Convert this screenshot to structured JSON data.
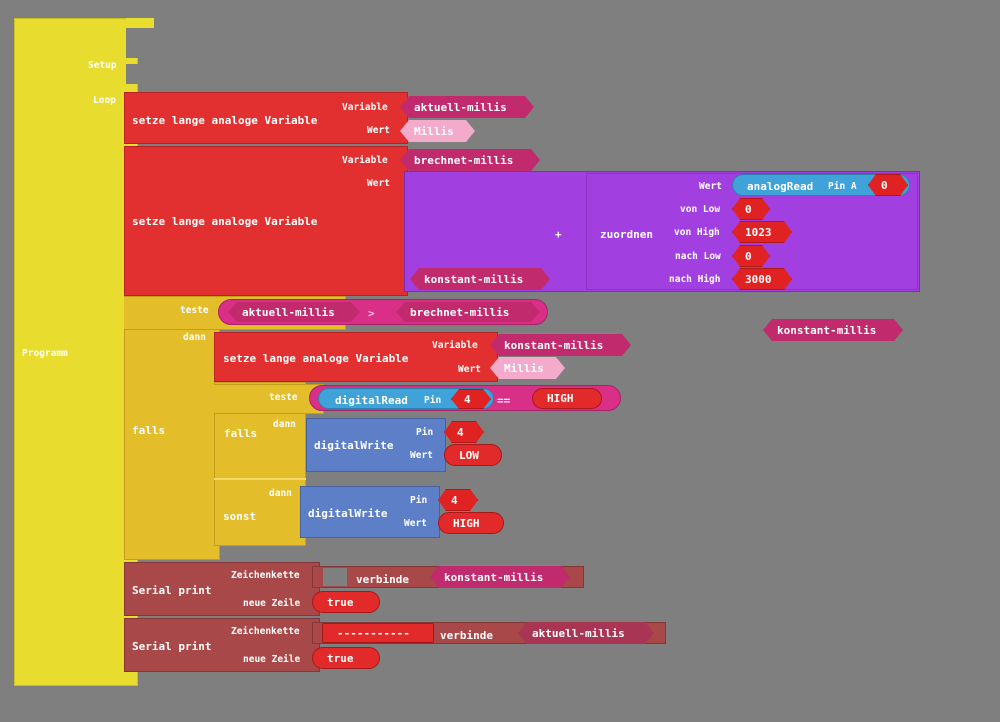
{
  "program": {
    "label": "Programm",
    "setup_label": "Setup",
    "loop_label": "Loop"
  },
  "set1": {
    "label": "setze lange analoge Variable",
    "variable_label": "Variable",
    "value_label": "Wert",
    "variable": "aktuell-millis",
    "value": "Millis"
  },
  "set2": {
    "label": "setze lange analoge Variable",
    "variable_label": "Variable",
    "value_label": "Wert",
    "variable": "brechnet-millis",
    "operator": "+",
    "left_operand": "konstant-millis",
    "map": {
      "label": "zuordnen",
      "value_label": "Wert",
      "analog_read_label": "analogRead",
      "pin_label": "Pin A",
      "pin_value": "0",
      "from_low_label": "von Low",
      "from_low": "0",
      "from_high_label": "von High",
      "from_high": "1023",
      "to_low_label": "nach Low",
      "to_low": "0",
      "to_high_label": "nach High",
      "to_high": "3000"
    }
  },
  "loose_var": "konstant-millis",
  "if1": {
    "label": "falls",
    "test_label": "teste",
    "then_label": "dann",
    "left": "aktuell-millis",
    "operator": ">",
    "right": "brechnet-millis",
    "set": {
      "label": "setze lange analoge Variable",
      "variable_label": "Variable",
      "value_label": "Wert",
      "variable": "konstant-millis",
      "value": "Millis"
    },
    "if2": {
      "label": "falls",
      "test_label": "teste",
      "then_label": "dann",
      "else_then_label": "dann",
      "else_label": "sonst",
      "read_label": "digitalRead",
      "read_pin_label": "Pin",
      "read_pin": "4",
      "cmp_operator": "==",
      "cmp_value": "HIGH",
      "write1": {
        "label": "digitalWrite",
        "pin_label": "Pin",
        "pin": "4",
        "value_label": "Wert",
        "value": "LOW"
      },
      "write2": {
        "label": "digitalWrite",
        "pin_label": "Pin",
        "pin": "4",
        "value_label": "Wert",
        "value": "HIGH"
      }
    }
  },
  "serial1": {
    "label": "Serial print",
    "string_label": "Zeichenkette",
    "newline_label": "neue Zeile",
    "join_label": "verbinde",
    "joined_var": "konstant-millis",
    "newline_value": "true"
  },
  "serial2": {
    "label": "Serial print",
    "string_label": "Zeichenkette",
    "newline_label": "neue Zeile",
    "text": "-----------",
    "join_label": "verbinde",
    "joined_var": "aktuell-millis",
    "newline_value": "true"
  },
  "colors": {
    "background": "#7f7f7f",
    "program": "#e8dd2e",
    "variable_set": "#e23030",
    "math": "#a13fe0",
    "logic": "#e3bd2a",
    "io": "#5c7fc8",
    "serial": "#a94848",
    "variable": "#c22a6e"
  }
}
